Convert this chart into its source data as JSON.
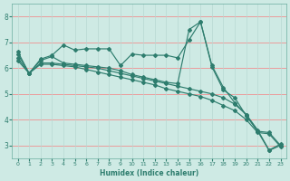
{
  "xlabel": "Humidex (Indice chaleur)",
  "xlim": [
    -0.5,
    23.5
  ],
  "ylim": [
    2.5,
    8.5
  ],
  "xticks": [
    0,
    1,
    2,
    3,
    4,
    5,
    6,
    7,
    8,
    9,
    10,
    11,
    12,
    13,
    14,
    15,
    16,
    17,
    18,
    19,
    20,
    21,
    22,
    23
  ],
  "yticks": [
    3,
    4,
    5,
    6,
    7,
    8
  ],
  "bg_color": "#ceeae4",
  "line_color": "#2e7d6e",
  "grid_color_h": "#f09090",
  "grid_color_v": "#b8d8d2",
  "line1_x": [
    0,
    1,
    2,
    3,
    4,
    5,
    6,
    7,
    8,
    9,
    10,
    11,
    12,
    13,
    14,
    15,
    16,
    17,
    18,
    19,
    20,
    21,
    22,
    23
  ],
  "line1_y": [
    6.65,
    5.8,
    6.35,
    6.5,
    6.9,
    6.7,
    6.75,
    6.75,
    6.75,
    6.1,
    6.55,
    6.5,
    6.5,
    6.5,
    6.4,
    7.1,
    7.8,
    6.1,
    5.25,
    4.65,
    4.2,
    3.6,
    2.82,
    3.05
  ],
  "line2_x": [
    0,
    1,
    2,
    3,
    4,
    5,
    6,
    7,
    8,
    9,
    10,
    11,
    12,
    13,
    14,
    15,
    16,
    17,
    18,
    19,
    20,
    21,
    22,
    23
  ],
  "line2_y": [
    6.4,
    5.8,
    6.2,
    6.2,
    6.15,
    6.1,
    6.05,
    6.0,
    5.9,
    5.8,
    5.7,
    5.6,
    5.5,
    5.4,
    5.3,
    5.2,
    5.1,
    5.0,
    4.85,
    4.6,
    4.2,
    3.55,
    3.5,
    3.0
  ],
  "line3_x": [
    0,
    1,
    2,
    3,
    4,
    5,
    6,
    7,
    8,
    9,
    10,
    11,
    12,
    13,
    14,
    15,
    16,
    17,
    18,
    19,
    20,
    21,
    22,
    23
  ],
  "line3_y": [
    6.3,
    5.8,
    6.15,
    6.15,
    6.1,
    6.05,
    5.95,
    5.85,
    5.75,
    5.65,
    5.55,
    5.45,
    5.35,
    5.2,
    5.1,
    5.0,
    4.9,
    4.75,
    4.55,
    4.35,
    4.0,
    3.5,
    3.45,
    2.95
  ],
  "line4_x": [
    0,
    1,
    2,
    3,
    4,
    5,
    6,
    7,
    8,
    9,
    10,
    11,
    12,
    13,
    14,
    15,
    16,
    17,
    18,
    19,
    20,
    21,
    22,
    23
  ],
  "line4_y": [
    6.55,
    5.8,
    6.3,
    6.45,
    6.2,
    6.15,
    6.1,
    6.05,
    6.0,
    5.9,
    5.75,
    5.65,
    5.55,
    5.45,
    5.4,
    7.5,
    7.8,
    6.05,
    5.15,
    4.85,
    4.15,
    3.55,
    2.8,
    3.0
  ]
}
